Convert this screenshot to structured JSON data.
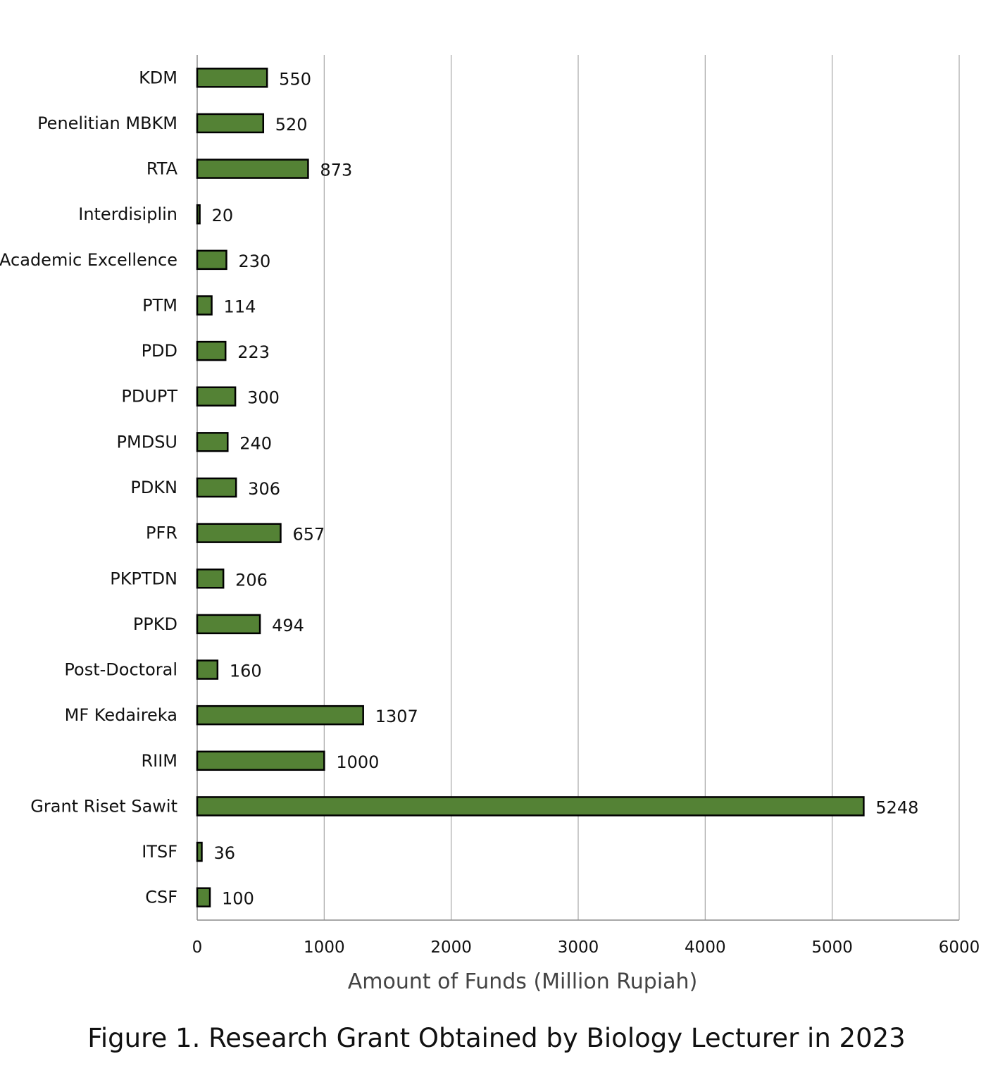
{
  "chart_data": {
    "type": "bar",
    "orientation": "horizontal",
    "title": "",
    "caption": "Figure 1. Research Grant Obtained by Biology Lecturer in 2023",
    "xlabel": "Amount of Funds (Million Rupiah)",
    "ylabel": "",
    "xlim": [
      0,
      6000
    ],
    "xticks": [
      0,
      1000,
      2000,
      3000,
      4000,
      5000,
      6000
    ],
    "grid": true,
    "legend": "none",
    "bar_color": "#548235",
    "bar_edge_color": "#000000",
    "categories": [
      "KDM",
      "Penelitian MBKM",
      "RTA",
      "Interdisiplin",
      "Academic Excellence",
      "PTM",
      "PDD",
      "PDUPT",
      "PMDSU",
      "PDKN",
      "PFR",
      "PKPTDN",
      "PPKD",
      "Post-Doctoral",
      "MF Kedaireka",
      "RIIM",
      "Grant Riset Sawit",
      "ITSF",
      "CSF"
    ],
    "values": [
      550,
      520,
      873,
      20,
      230,
      114,
      223,
      300,
      240,
      306,
      657,
      206,
      494,
      160,
      1307,
      1000,
      5248,
      36,
      100
    ]
  }
}
